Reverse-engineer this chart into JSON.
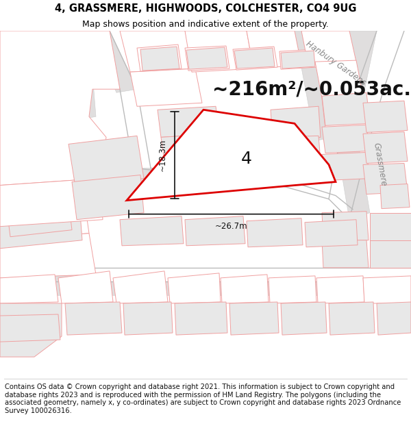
{
  "title": "4, GRASSMERE, HIGHWOODS, COLCHESTER, CO4 9UG",
  "subtitle": "Map shows position and indicative extent of the property.",
  "area_text": "~216m²/~0.053ac.",
  "property_number": "4",
  "measurement_h": "~18.3m",
  "measurement_w": "~26.7m",
  "street_label_1": "Hanbury Gardens",
  "street_label_2": "Grassmere",
  "footer": "Contains OS data © Crown copyright and database right 2021. This information is subject to Crown copyright and database rights 2023 and is reproduced with the permission of HM Land Registry. The polygons (including the associated geometry, namely x, y co-ordinates) are subject to Crown copyright and database rights 2023 Ordnance Survey 100026316.",
  "bg_color": "#ffffff",
  "property_outline_color": "#dd0000",
  "other_outline_color": "#f0a0a0",
  "fill_color": "#e8e8e8",
  "road_fill": "#e0dede",
  "title_fontsize": 10.5,
  "subtitle_fontsize": 9,
  "area_fontsize": 20,
  "label_fontsize": 9,
  "footer_fontsize": 7.2
}
